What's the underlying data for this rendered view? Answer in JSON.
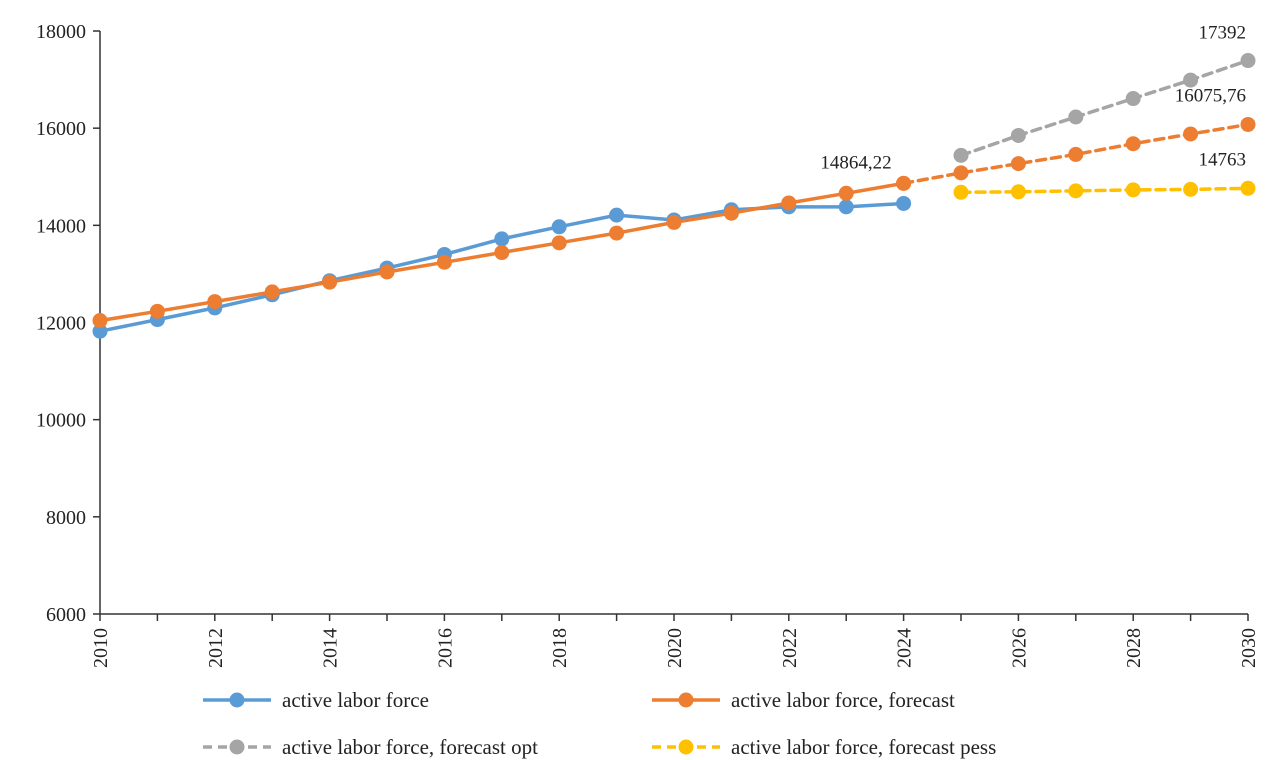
{
  "chart_data": {
    "type": "line",
    "title": "",
    "xlabel": "",
    "ylabel": "",
    "xlim": [
      2010,
      2030
    ],
    "ylim": [
      6000,
      18000
    ],
    "x_ticks": [
      "2010",
      "2012",
      "2014",
      "2016",
      "2018",
      "2020",
      "2022",
      "2024",
      "2026",
      "2028",
      "2030"
    ],
    "y_ticks": [
      "6000",
      "8000",
      "10000",
      "12000",
      "14000",
      "16000",
      "18000"
    ],
    "grid": false,
    "legend_position": "bottom",
    "series": [
      {
        "name": "active labor force",
        "color": "#5B9BD5",
        "dashed": false,
        "x": [
          2010,
          2011,
          2012,
          2013,
          2014,
          2015,
          2016,
          2017,
          2018,
          2019,
          2020,
          2021,
          2022,
          2023,
          2024
        ],
        "values": [
          11820,
          12060,
          12300,
          12570,
          12860,
          13120,
          13400,
          13720,
          13970,
          14210,
          14110,
          14320,
          14380,
          14380,
          14450
        ]
      },
      {
        "name": "active labor force, forecast",
        "color": "#ED7D31",
        "dashed": false,
        "x": [
          2010,
          2011,
          2012,
          2013,
          2014,
          2015,
          2016,
          2017,
          2018,
          2019,
          2020,
          2021,
          2022,
          2023,
          2024
        ],
        "values": [
          12040,
          12230,
          12430,
          12630,
          12830,
          13040,
          13240,
          13440,
          13640,
          13840,
          14060,
          14250,
          14460,
          14660,
          14864.22
        ]
      },
      {
        "name": "",
        "color": "#ED7D31",
        "dashed": true,
        "x": [
          2024,
          2025,
          2026,
          2027,
          2028,
          2029,
          2030
        ],
        "values": [
          14864.22,
          15080,
          15270,
          15460,
          15680,
          15880,
          16075.76
        ]
      },
      {
        "name": "active labor force, forecast  opt",
        "color": "#A5A5A5",
        "dashed": true,
        "x": [
          2025,
          2026,
          2027,
          2028,
          2029,
          2030
        ],
        "values": [
          15440,
          15850,
          16230,
          16610,
          16990,
          17392
        ]
      },
      {
        "name": "active labor force, forecast  pess",
        "color": "#FFC000",
        "dashed": true,
        "x": [
          2025,
          2026,
          2027,
          2028,
          2029,
          2030
        ],
        "values": [
          14680,
          14690,
          14710,
          14730,
          14740,
          14763
        ]
      }
    ],
    "annotations": [
      {
        "text": "14864,22",
        "x": 2024,
        "y": 14864.22,
        "anchor": "end"
      },
      {
        "text": "17392",
        "x": 2030,
        "y": 17392,
        "anchor": "end"
      },
      {
        "text": "16075,76",
        "x": 2030,
        "y": 16075.76,
        "anchor": "end"
      },
      {
        "text": "14763",
        "x": 2030,
        "y": 14763,
        "anchor": "end"
      }
    ]
  }
}
